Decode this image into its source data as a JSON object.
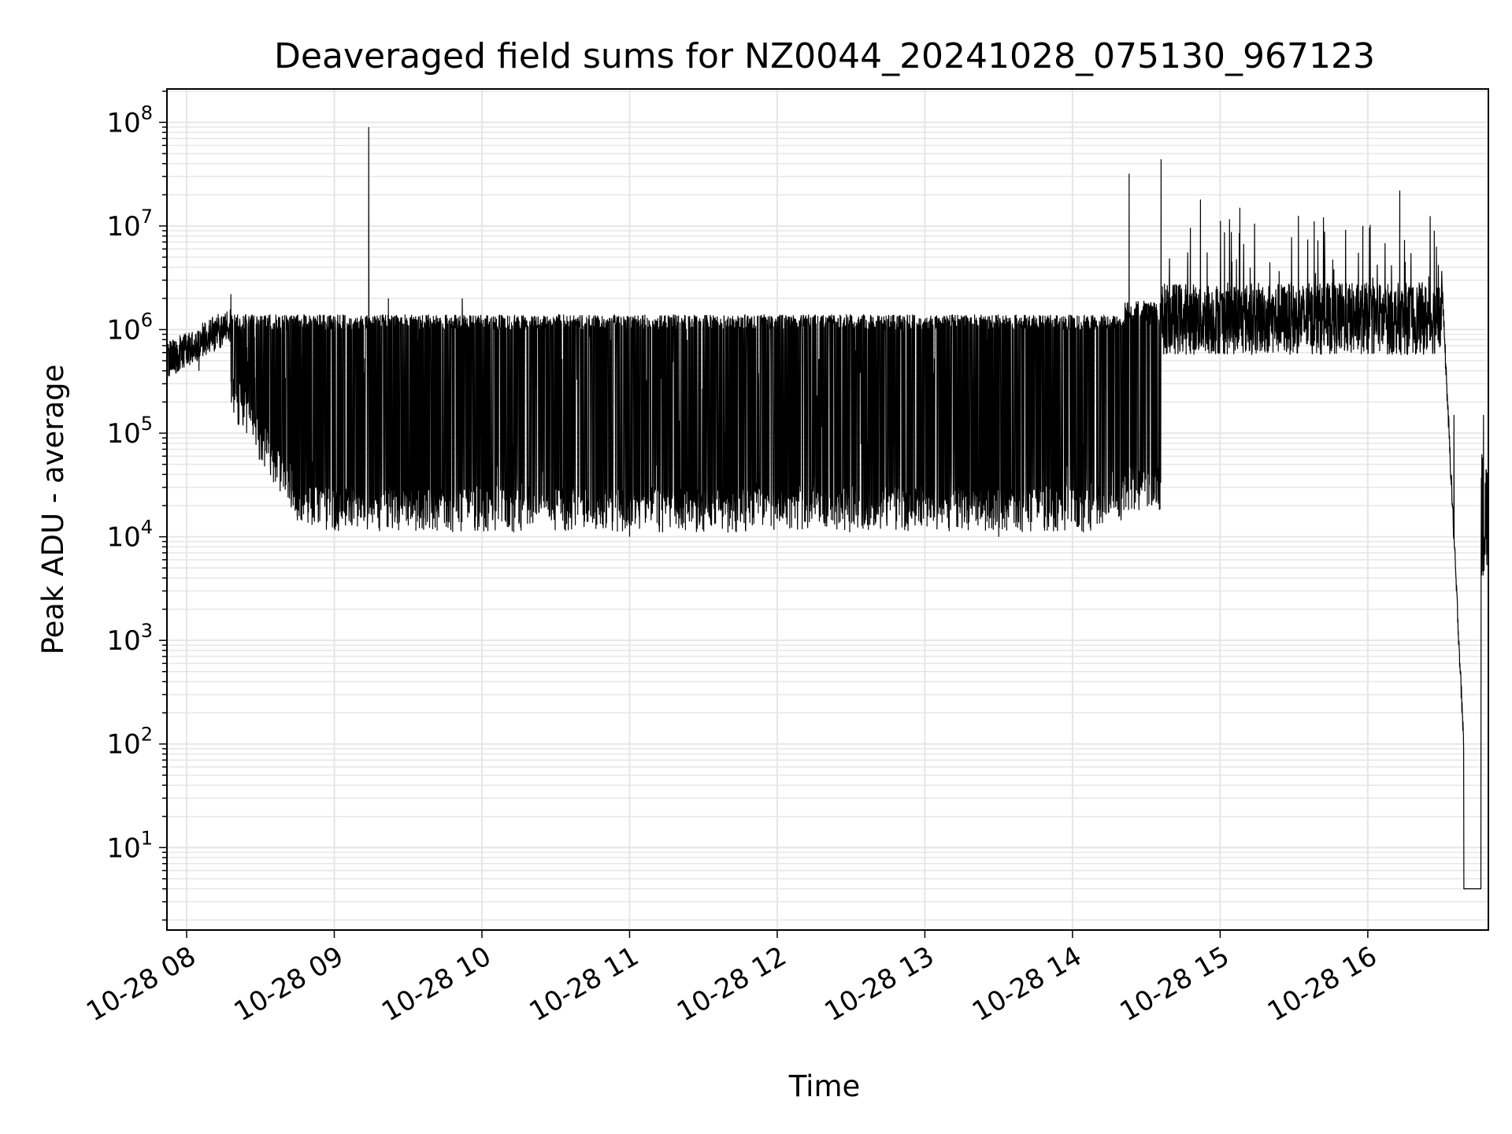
{
  "chart_data": {
    "type": "line",
    "title": "Deaveraged field sums for NZ0044_20241028_075130_967123",
    "xlabel": "Time",
    "ylabel": "Peak ADU - average",
    "yscale": "log",
    "ylim": [
      1.6,
      210000000.0
    ],
    "xlim": [
      "10-28 07:52",
      "10-28 16:49"
    ],
    "grid": true,
    "line_color": "#000000",
    "grid_color": "#e6e6e6",
    "y_ticks": [
      {
        "base": "10",
        "exp": "1",
        "value": 10
      },
      {
        "base": "10",
        "exp": "2",
        "value": 100
      },
      {
        "base": "10",
        "exp": "3",
        "value": 1000
      },
      {
        "base": "10",
        "exp": "4",
        "value": 10000
      },
      {
        "base": "10",
        "exp": "5",
        "value": 100000
      },
      {
        "base": "10",
        "exp": "6",
        "value": 1000000
      },
      {
        "base": "10",
        "exp": "7",
        "value": 10000000
      },
      {
        "base": "10",
        "exp": "8",
        "value": 100000000
      }
    ],
    "x_ticks": [
      {
        "label": "10-28 08",
        "time": "10-28 08:00"
      },
      {
        "label": "10-28 09",
        "time": "10-28 09:00"
      },
      {
        "label": "10-28 10",
        "time": "10-28 10:00"
      },
      {
        "label": "10-28 11",
        "time": "10-28 11:00"
      },
      {
        "label": "10-28 12",
        "time": "10-28 12:00"
      },
      {
        "label": "10-28 13",
        "time": "10-28 13:00"
      },
      {
        "label": "10-28 14",
        "time": "10-28 14:00"
      },
      {
        "label": "10-28 15",
        "time": "10-28 15:00"
      },
      {
        "label": "10-28 16",
        "time": "10-28 16:00"
      }
    ],
    "series": [
      {
        "values": [
          {
            "time": "10-28 07:52",
            "y": 500000.0
          },
          {
            "time": "10-28 07:58",
            "y": 750000.0
          },
          {
            "time": "10-28 08:05",
            "y": 400000.0
          },
          {
            "time": "10-28 08:10",
            "y": 1000000.0
          },
          {
            "time": "10-28 08:18",
            "y": 2200000.0
          },
          {
            "time": "10-28 08:25",
            "y": 300000.0
          },
          {
            "time": "10-28 08:35",
            "y": 60000.0
          },
          {
            "time": "10-28 08:45",
            "y": 20000.0
          },
          {
            "time": "10-28 09:00",
            "y": 12000.0
          },
          {
            "time": "10-28 09:14",
            "y": 90000000.0
          },
          {
            "time": "10-28 09:22",
            "y": 2000000.0
          },
          {
            "time": "10-28 09:52",
            "y": 2000000.0
          },
          {
            "time": "10-28 11:00",
            "y": 10000.0
          },
          {
            "time": "10-28 11:40",
            "y": 11000.0
          },
          {
            "time": "10-28 13:30",
            "y": 10000.0
          },
          {
            "time": "10-28 14:23",
            "y": 32000000.0
          },
          {
            "time": "10-28 14:36",
            "y": 44000000.0
          },
          {
            "time": "10-28 14:52",
            "y": 18000000.0
          },
          {
            "time": "10-28 15:08",
            "y": 15000000.0
          },
          {
            "time": "10-28 15:58",
            "y": 10000000.0
          },
          {
            "time": "10-28 16:13",
            "y": 22000000.0
          },
          {
            "time": "10-28 16:27",
            "y": 9000000.0
          },
          {
            "time": "10-28 16:35",
            "y": 150000.0
          },
          {
            "time": "10-28 16:40",
            "y": 4
          },
          {
            "time": "10-28 16:47",
            "y": 150000.0
          },
          {
            "time": "10-28 16:49",
            "y": 1800.0
          }
        ]
      }
    ]
  }
}
